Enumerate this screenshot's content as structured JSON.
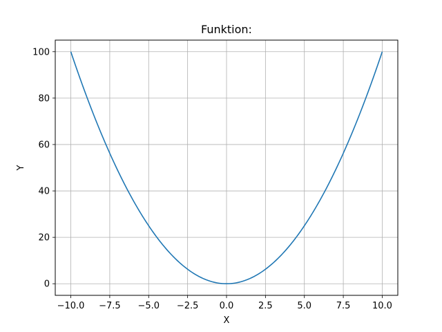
{
  "chart_data": {
    "type": "line",
    "title": "Funktion:",
    "xlabel": "X",
    "ylabel": "Y",
    "xlim": [
      -11.0,
      11.0
    ],
    "ylim": [
      -5.0,
      105.0
    ],
    "x_ticks": [
      -10.0,
      -7.5,
      -5.0,
      -2.5,
      0.0,
      2.5,
      5.0,
      7.5,
      10.0
    ],
    "x_tick_labels": [
      "−10.0",
      "−7.5",
      "−5.0",
      "−2.5",
      "0.0",
      "2.5",
      "5.0",
      "7.5",
      "10.0"
    ],
    "y_ticks": [
      0,
      20,
      40,
      60,
      80,
      100
    ],
    "y_tick_labels": [
      "0",
      "20",
      "40",
      "60",
      "80",
      "100"
    ],
    "grid": true,
    "line_color": "#1f77b4",
    "series": [
      {
        "x": [
          -10,
          -9,
          -8,
          -7,
          -6,
          -5,
          -4,
          -3,
          -2,
          -1,
          0,
          1,
          2,
          3,
          4,
          5,
          6,
          7,
          8,
          9,
          10
        ],
        "y": [
          100,
          81,
          64,
          49,
          36,
          25,
          16,
          9,
          4,
          1,
          0,
          1,
          4,
          9,
          16,
          25,
          36,
          49,
          64,
          81,
          100
        ]
      }
    ]
  }
}
